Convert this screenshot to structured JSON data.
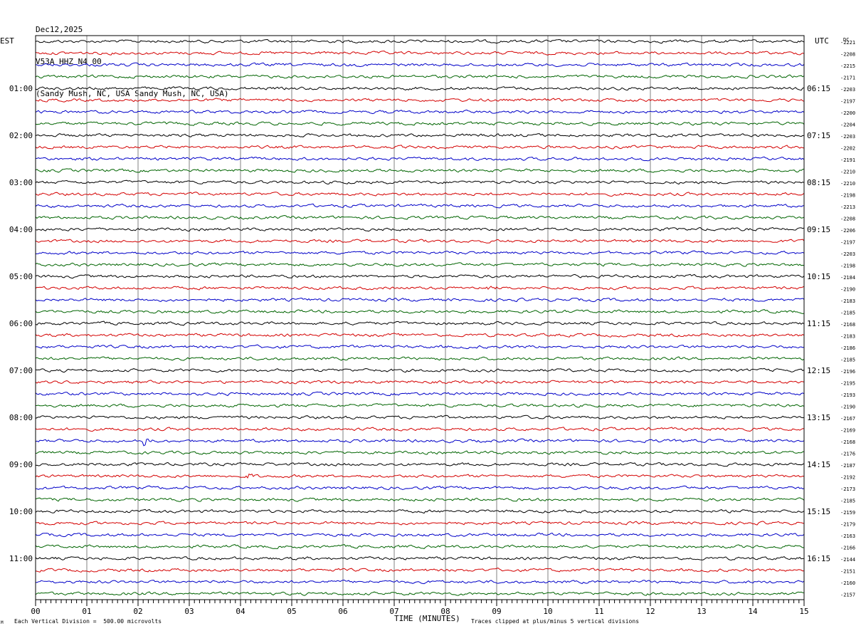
{
  "header": {
    "date": "Dec12,2025",
    "station": "V53A HHZ N4 00",
    "location": "(Sandy Mush, NC, USA Sandy Mush, NC, USA)"
  },
  "left_timezone": "EST",
  "right_timezone": "UTC",
  "dc_label": "DC",
  "footer": {
    "scale_note": "Each Vertical Division =  500.00 microvolts",
    "clip_note": "Traces clipped at plus/minus 5 vertical divisions",
    "corner_mark": "M"
  },
  "colors": {
    "cycle": [
      "#000000",
      "#d40000",
      "#0000c8",
      "#006400"
    ],
    "grid": "#808080",
    "frame": "#000000"
  },
  "chart_data": {
    "type": "helicorder",
    "xlabel": "TIME (MINUTES)",
    "x_ticks": [
      "00",
      "01",
      "02",
      "03",
      "04",
      "05",
      "06",
      "07",
      "08",
      "09",
      "10",
      "11",
      "12",
      "13",
      "14",
      "15"
    ],
    "xlim": [
      0,
      15
    ],
    "minutes_per_line": 15,
    "line_count": 48,
    "left_hour_labels": [
      {
        "line": 4,
        "text": "01:00"
      },
      {
        "line": 8,
        "text": "02:00"
      },
      {
        "line": 12,
        "text": "03:00"
      },
      {
        "line": 16,
        "text": "04:00"
      },
      {
        "line": 20,
        "text": "05:00"
      },
      {
        "line": 24,
        "text": "06:00"
      },
      {
        "line": 28,
        "text": "07:00"
      },
      {
        "line": 32,
        "text": "08:00"
      },
      {
        "line": 36,
        "text": "09:00"
      },
      {
        "line": 40,
        "text": "10:00"
      },
      {
        "line": 44,
        "text": "11:00"
      }
    ],
    "right_hour_labels": [
      {
        "line": 4,
        "text": "06:15"
      },
      {
        "line": 8,
        "text": "07:15"
      },
      {
        "line": 12,
        "text": "08:15"
      },
      {
        "line": 16,
        "text": "09:15"
      },
      {
        "line": 20,
        "text": "10:15"
      },
      {
        "line": 24,
        "text": "11:15"
      },
      {
        "line": 28,
        "text": "12:15"
      },
      {
        "line": 32,
        "text": "13:15"
      },
      {
        "line": 36,
        "text": "14:15"
      },
      {
        "line": 40,
        "text": "15:15"
      },
      {
        "line": 44,
        "text": "16:15"
      }
    ],
    "dc_offsets": [
      "-2221",
      "-2208",
      "-2215",
      "-2171",
      "-2203",
      "-2197",
      "-2200",
      "-2204",
      "-2203",
      "-2202",
      "-2191",
      "-2210",
      "-2210",
      "-2198",
      "-2213",
      "-2208",
      "-2206",
      "-2197",
      "-2203",
      "-2198",
      "-2184",
      "-2190",
      "-2183",
      "-2185",
      "-2168",
      "-2183",
      "-2186",
      "-2185",
      "-2196",
      "-2195",
      "-2193",
      "-2190",
      "-2167",
      "-2169",
      "-2168",
      "-2176",
      "-2187",
      "-2192",
      "-2173",
      "-2185",
      "-2159",
      "-2179",
      "-2163",
      "-2166",
      "-2144",
      "-2151",
      "-2160",
      "-2157"
    ],
    "events": [
      {
        "line": 34,
        "minute": 2.1,
        "duration_min": 0.25,
        "amplitude": 9
      },
      {
        "line": 37,
        "minute": 4.1,
        "duration_min": 0.25,
        "amplitude": 5
      },
      {
        "line": 21,
        "minute": 8.8,
        "duration_min": 0.3,
        "amplitude": 3
      }
    ]
  }
}
